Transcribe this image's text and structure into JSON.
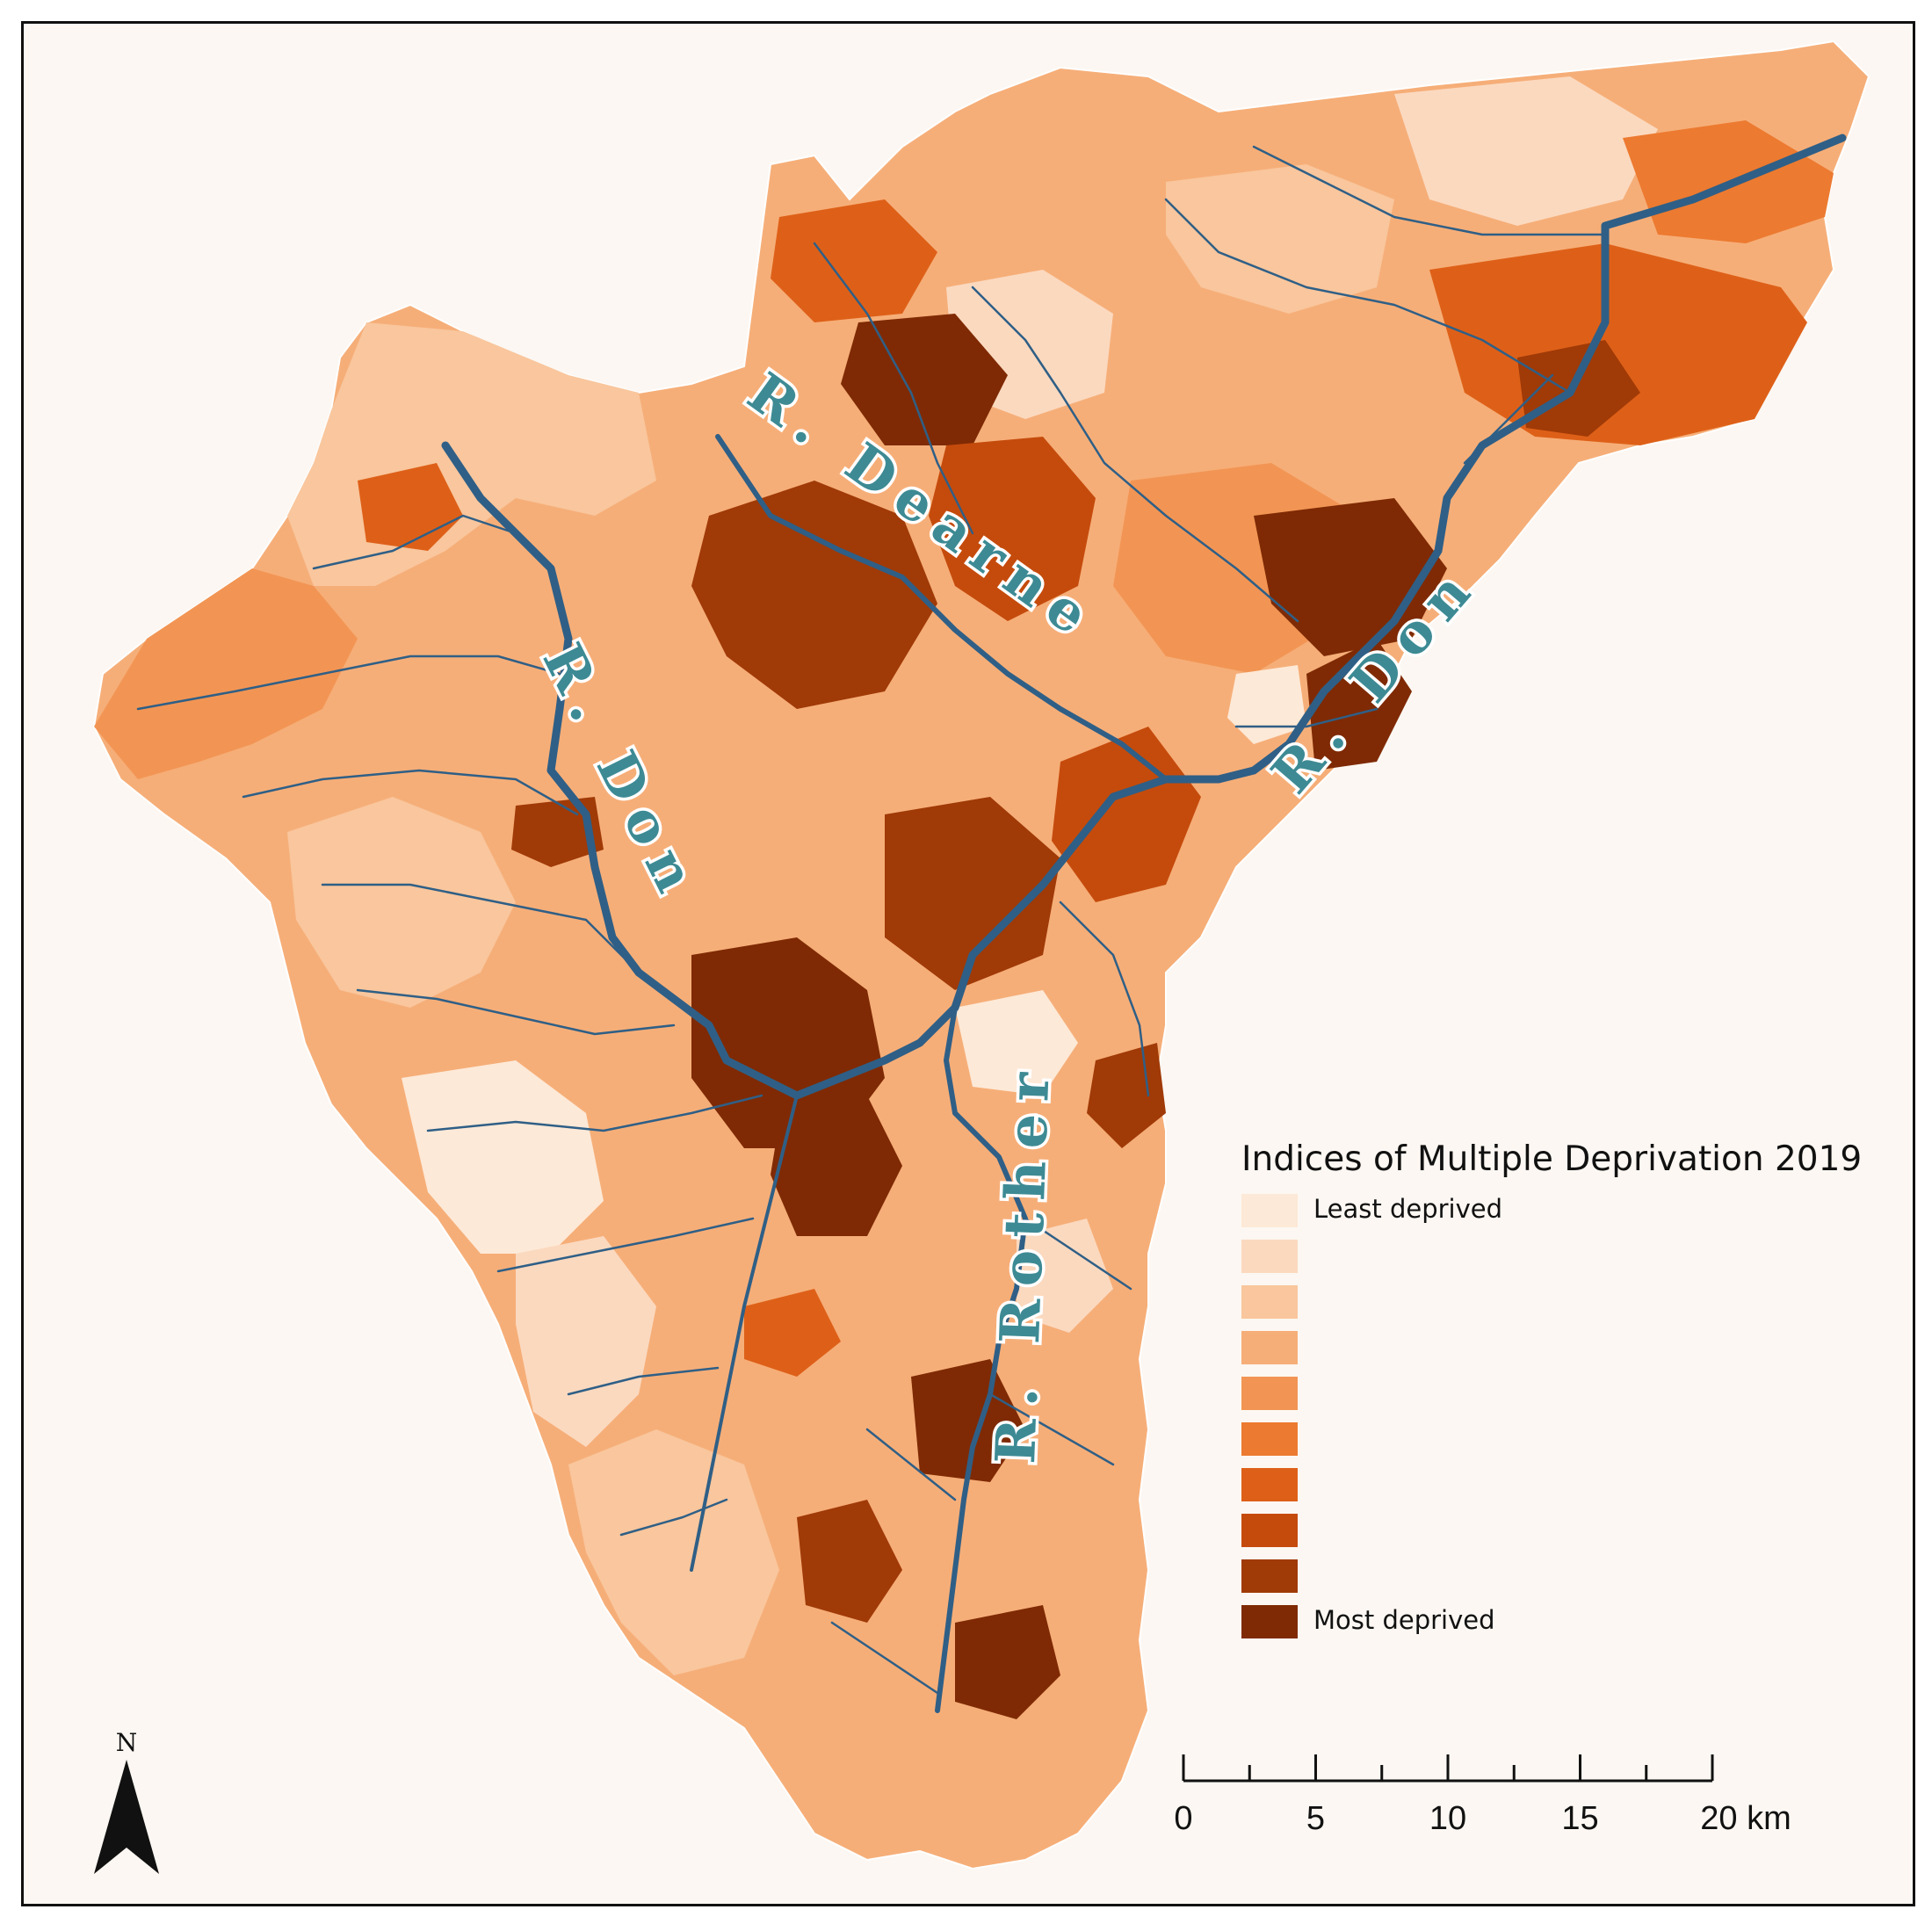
{
  "legend": {
    "title": "Indices of Multiple Deprivation 2019",
    "least_label": "Least deprived",
    "most_label": "Most deprived",
    "classes": [
      "#fde9d7",
      "#fbd9bf",
      "#f9c69d",
      "#f6ae78",
      "#f29554",
      "#ec7a30",
      "#de6018",
      "#c54b0c",
      "#a03a07",
      "#7f2a04"
    ]
  },
  "scale_bar": {
    "ticks": [
      "0",
      "5",
      "10",
      "15",
      "20 km"
    ],
    "tick_values_km": [
      0,
      5,
      10,
      15,
      20
    ]
  },
  "north_arrow": {
    "label": "N",
    "icon": "north-arrow-icon"
  },
  "rivers": {
    "dearne": "R. Dearne",
    "don_upper": "R. Don",
    "don_lower": "R. Don",
    "rother": "R. Rother"
  },
  "colors": {
    "river": "#2f5f86",
    "background": "#fcf7f2",
    "frame": "#111111"
  }
}
